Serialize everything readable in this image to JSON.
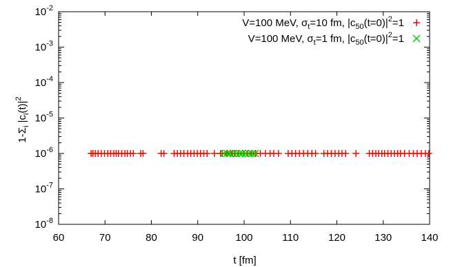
{
  "chart_data": {
    "type": "scatter",
    "xlabel": "t [fm]",
    "ylabel_parts": {
      "base": "1-Σ",
      "sub1": "i",
      "mid": " |c",
      "sub2": "i",
      "end": "(t)|",
      "sup": "2"
    },
    "xlim": [
      60,
      140
    ],
    "ylim": [
      1e-08,
      0.01
    ],
    "y_scale": "log",
    "x_ticks": [
      60,
      70,
      80,
      90,
      100,
      110,
      120,
      130,
      140
    ],
    "y_ticks": [
      {
        "value": 1e-08,
        "base": "10",
        "exp": "-8"
      },
      {
        "value": 1e-07,
        "base": "10",
        "exp": "-7"
      },
      {
        "value": 1e-06,
        "base": "10",
        "exp": "-6"
      },
      {
        "value": 1e-05,
        "base": "10",
        "exp": "-5"
      },
      {
        "value": 0.0001,
        "base": "10",
        "exp": "-4"
      },
      {
        "value": 0.001,
        "base": "10",
        "exp": "-3"
      },
      {
        "value": 0.01,
        "base": "10",
        "exp": "-2"
      }
    ],
    "grid": false,
    "legend_position": "top-right",
    "series": [
      {
        "legend": {
          "pre": "V=100 MeV, σ",
          "sub1": "t",
          "mid": "=10 fm, |c",
          "sub2": "50",
          "post": "(t=0)|",
          "sup": "2",
          "end": "=1"
        },
        "color": "#ff0000",
        "marker": "plus",
        "y": 1e-06,
        "x": [
          67.0,
          67.4,
          67.9,
          68.5,
          69.2,
          69.9,
          70.6,
          71.2,
          71.9,
          72.4,
          72.9,
          73.6,
          74.3,
          74.8,
          75.5,
          76.1,
          77.7,
          78.2,
          82.1,
          82.7,
          84.9,
          85.6,
          86.3,
          87.0,
          87.8,
          88.5,
          89.2,
          89.9,
          90.6,
          91.3,
          92.0,
          93.6,
          94.9,
          95.3,
          96.3,
          97.1,
          97.5,
          98.0,
          98.8,
          99.8,
          100.8,
          101.6,
          102.5,
          103.5,
          104.6,
          105.6,
          106.4,
          107.4,
          109.5,
          110.3,
          111.1,
          111.9,
          112.8,
          113.7,
          114.6,
          115.4,
          117.2,
          118.0,
          118.8,
          119.6,
          120.4,
          121.1,
          121.9,
          124.1,
          127.0,
          127.7,
          128.4,
          129.0,
          129.7,
          130.3,
          131.0,
          131.7,
          132.4,
          133.1,
          133.7,
          134.6,
          135.6,
          136.5,
          137.3,
          138.2,
          139.1,
          139.8
        ]
      },
      {
        "legend": {
          "pre": "V=100 MeV, σ",
          "sub1": "t",
          "mid": "=1 fm, |c",
          "sub2": "50",
          "post": "(t=0)|",
          "sup": "2",
          "end": "=1"
        },
        "color": "#00cc00",
        "marker": "cross",
        "y": 1e-06,
        "x": [
          95.6,
          96.3,
          97.0,
          97.7,
          98.3,
          99.0,
          99.6,
          100.3,
          101.0,
          101.7,
          102.4
        ]
      }
    ]
  }
}
